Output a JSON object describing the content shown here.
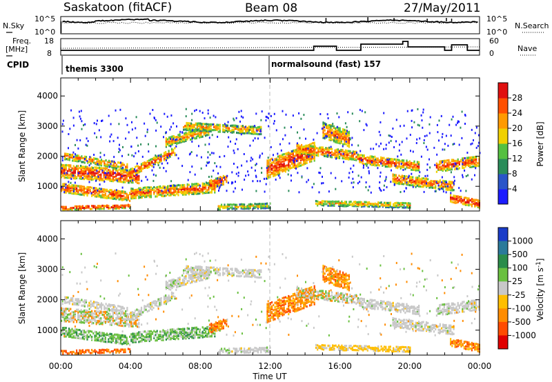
{
  "header": {
    "left": "Saskatoon (fitACF)",
    "center": "Beam 08",
    "right": "27/May/2011"
  },
  "strip": {
    "nsky_label": "N.Sky",
    "nsky_tick_top": "10^5",
    "nsky_tick_bottom": "10^0",
    "nsearch_tick_top": "10^5",
    "nsearch_tick_bottom": "10^0",
    "nsearch_label": "N.Search",
    "freq_label_1": "Freq.",
    "freq_label_2": "[MHz]",
    "freq_tick_top": "18",
    "freq_tick_bottom": "8",
    "nave_tick_top": "60",
    "nave_tick_bottom": "0",
    "nave_label": "Nave",
    "cpid_label": "CPID",
    "cpid_1": "themis 3300",
    "cpid_2": "normalsound (fast) 157"
  },
  "chart_data": [
    {
      "type": "heatmap",
      "panel": "power",
      "ylabel": "Slant Range [km]",
      "y_ticks": [
        1000,
        2000,
        3000,
        4000
      ],
      "ylim": [
        180,
        4600
      ],
      "x_ticks": [
        "00:00",
        "04:00",
        "08:00",
        "12:00",
        "16:00",
        "20:00",
        "00:00"
      ],
      "xlim_hours": [
        0,
        24
      ],
      "colorbar": {
        "label": "Power [dB]",
        "ticks": [
          "4",
          "8",
          "12",
          "16",
          "20",
          "24",
          "28"
        ],
        "colors": [
          "#1c1cff",
          "#2a55c8",
          "#2a8c5a",
          "#55c040",
          "#f0d000",
          "#ff9a00",
          "#ff5000",
          "#e01010"
        ]
      }
    },
    {
      "type": "heatmap",
      "panel": "velocity",
      "ylabel": "Slant Range [km]",
      "y_ticks": [
        1000,
        2000,
        3000,
        4000
      ],
      "ylim": [
        180,
        4600
      ],
      "x_ticks": [
        "00:00",
        "04:00",
        "08:00",
        "12:00",
        "16:00",
        "20:00",
        "00:00"
      ],
      "xlabel": "Time UT",
      "colorbar": {
        "label": "Velocity [m s",
        "label_sup": "-1",
        "label_end": "]",
        "ticks": [
          "1000",
          "500",
          "100",
          "25",
          "-25",
          "-100",
          "-500",
          "-1000"
        ],
        "colors": [
          "#1a3cc8",
          "#2a7a9a",
          "#2a8c4a",
          "#6ac040",
          "#c8c8c8",
          "#ffbe00",
          "#ff8c00",
          "#ff4c00",
          "#e00000"
        ]
      }
    }
  ]
}
